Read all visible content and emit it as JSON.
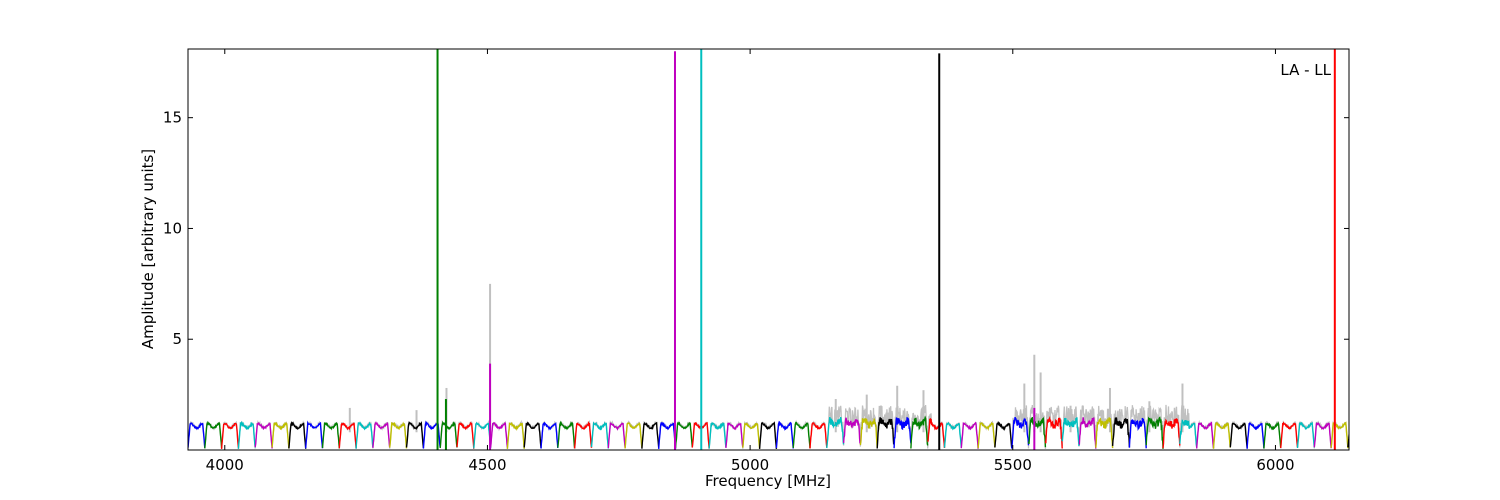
{
  "chart_data": {
    "type": "line",
    "title": "",
    "xlabel": "Frequency [MHz]",
    "ylabel": "Amplitude [arbitrary units]",
    "xlim": [
      3930,
      6140
    ],
    "ylim": [
      0,
      18.1
    ],
    "xticks": [
      4000,
      4500,
      5000,
      5500,
      6000
    ],
    "yticks": [
      5,
      10,
      15
    ],
    "annotation": "LA - LL",
    "annotation_position": "top-right",
    "grid": false,
    "channel_width_mhz": 32,
    "channel_start_mhz": 3930,
    "channel_colors": [
      "#0000ff",
      "#008000",
      "#ff0000",
      "#00bfbf",
      "#bf00bf",
      "#bfbf00",
      "#000000"
    ],
    "raw_color": "#c0c0c0",
    "raw_spikes": [
      {
        "x": 4238,
        "y": 1.9
      },
      {
        "x": 4365,
        "y": 1.8
      },
      {
        "x": 4422,
        "y": 2.8
      },
      {
        "x": 4505,
        "y": 7.5
      },
      {
        "x": 5163,
        "y": 2.3
      },
      {
        "x": 5222,
        "y": 2.5
      },
      {
        "x": 5280,
        "y": 2.9
      },
      {
        "x": 5330,
        "y": 2.7
      },
      {
        "x": 5522,
        "y": 3.0
      },
      {
        "x": 5541,
        "y": 4.3
      },
      {
        "x": 5553,
        "y": 3.5
      },
      {
        "x": 5610,
        "y": 2.0
      },
      {
        "x": 5685,
        "y": 2.8
      },
      {
        "x": 5760,
        "y": 2.2
      },
      {
        "x": 5823,
        "y": 3.0
      }
    ],
    "noisy_ranges": [
      [
        5150,
        5345
      ],
      [
        5500,
        5835
      ]
    ],
    "series_spikes": [
      {
        "x": 4405,
        "y": 18.1,
        "color": "#008000"
      },
      {
        "x": 4421,
        "y": 2.3,
        "color": "#008000"
      },
      {
        "x": 4505,
        "y": 3.9,
        "color": "#bf00bf"
      },
      {
        "x": 4857,
        "y": 18.0,
        "color": "#bf00bf"
      },
      {
        "x": 4907,
        "y": 18.1,
        "color": "#00bfbf"
      },
      {
        "x": 5360,
        "y": 17.9,
        "color": "#000000"
      },
      {
        "x": 5541,
        "y": 1.9,
        "color": "#bf00bf"
      },
      {
        "x": 6113,
        "y": 18.1,
        "color": "#ff0000"
      }
    ]
  }
}
